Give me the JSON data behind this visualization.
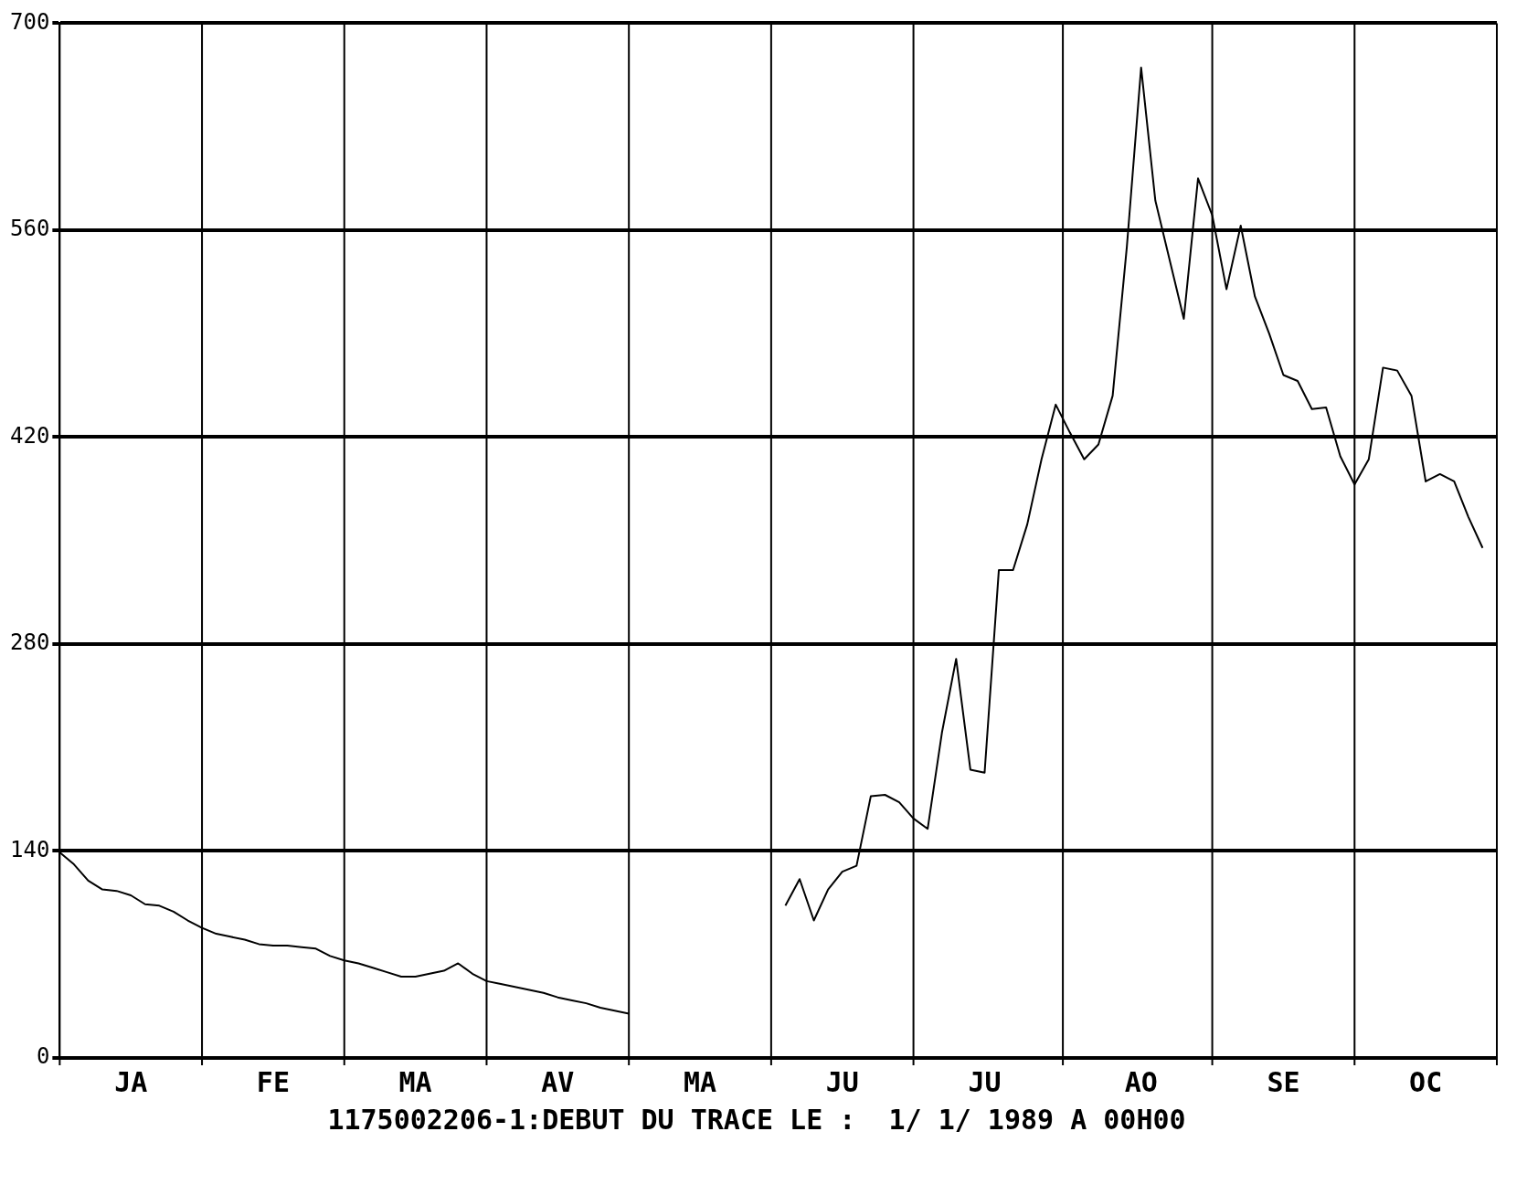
{
  "chart_data": {
    "type": "line",
    "categories": [
      null,
      null,
      null,
      null,
      null,
      "JA",
      null,
      null,
      null,
      null,
      null,
      null,
      null,
      null,
      null,
      "FE",
      null,
      null,
      null,
      null,
      null,
      null,
      null,
      null,
      null,
      "MA",
      null,
      null,
      null,
      null,
      null,
      null,
      null,
      null,
      null,
      "AV",
      null,
      null,
      null,
      null,
      null,
      null,
      null,
      null,
      null,
      "MA",
      null,
      null,
      null,
      null,
      null,
      null,
      null,
      null,
      null,
      "JU",
      null,
      null,
      null,
      null,
      null,
      null,
      null,
      null,
      null,
      "JU",
      null,
      null,
      null,
      null,
      null,
      null,
      null,
      null,
      null,
      null,
      "AO",
      null,
      null,
      null,
      null,
      null,
      null,
      null,
      null,
      null,
      "SE",
      null,
      null,
      null,
      null,
      null,
      null,
      null,
      null,
      null,
      "OC",
      null,
      null,
      null,
      null,
      null
    ],
    "series": [
      {
        "color": "#000000",
        "values": [
          139,
          131,
          120,
          114,
          113,
          110,
          104,
          103,
          99,
          93,
          88,
          84,
          82,
          80,
          77,
          76,
          76,
          75,
          74,
          69,
          66,
          64,
          61,
          58,
          55,
          55,
          57,
          59,
          64,
          57,
          52,
          50,
          48,
          46,
          44,
          41,
          39,
          37,
          34,
          32,
          30,
          null,
          null,
          null,
          null,
          null,
          null,
          null,
          null,
          null,
          null,
          103,
          121,
          93,
          114,
          126,
          130,
          177,
          178,
          173,
          162,
          155,
          220,
          270,
          195,
          193,
          330,
          330,
          361,
          405,
          442,
          423,
          405,
          415,
          448,
          549,
          670,
          580,
          540,
          500,
          595,
          570,
          520,
          563,
          515,
          490,
          462,
          458,
          439,
          440,
          407,
          388,
          405,
          467,
          465,
          448,
          390,
          395,
          390,
          366,
          345,
          null
        ]
      }
    ],
    "ylim": [
      0,
      700
    ],
    "yticks": [
      0,
      140,
      280,
      420,
      560,
      700
    ],
    "grid": true,
    "legend": false,
    "marker": "none",
    "line_style": "solid",
    "annotations": [
      "1175002206-1:DEBUT DU TRACE LE :  1/ 1/ 1989 A 00H00"
    ]
  }
}
